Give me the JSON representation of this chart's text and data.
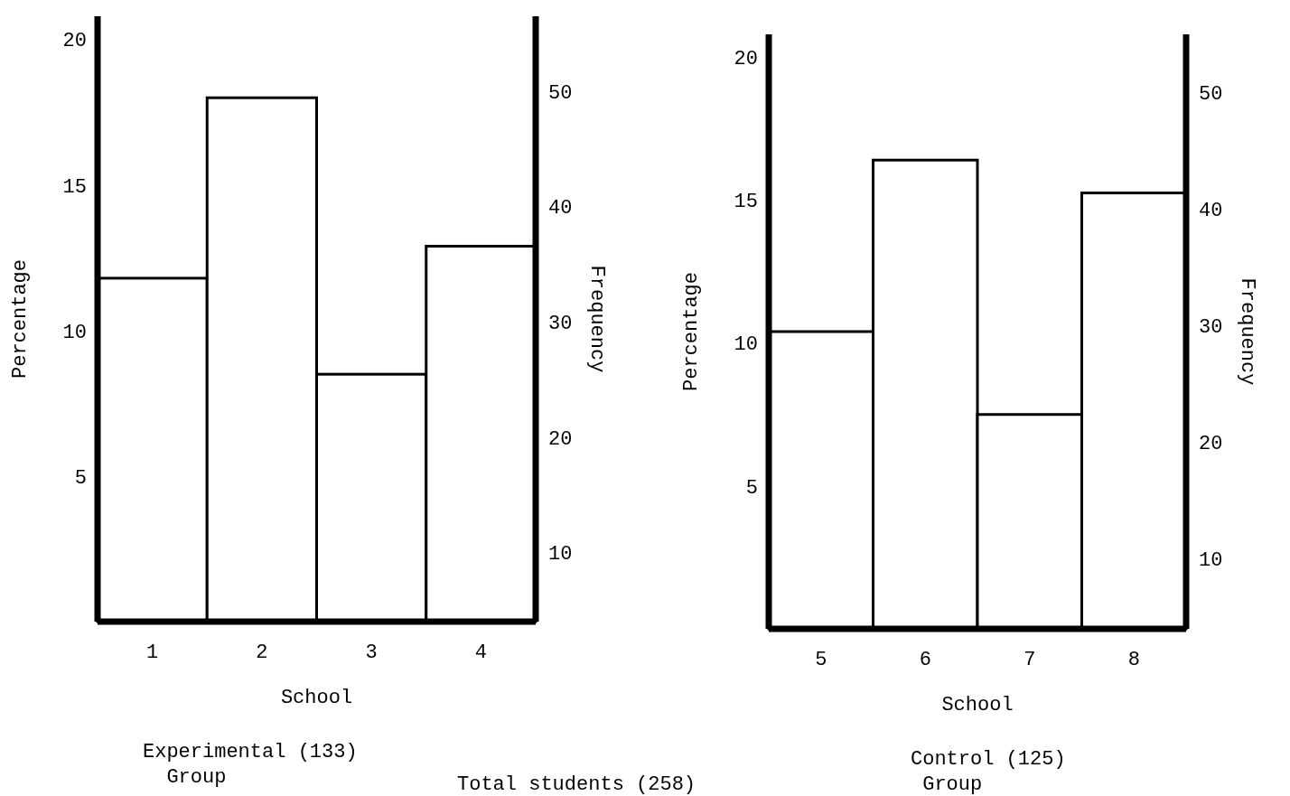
{
  "chart_data": [
    {
      "type": "bar",
      "categories": [
        "1",
        "2",
        "3",
        "4"
      ],
      "values": [
        11.8,
        18.0,
        8.5,
        12.9
      ],
      "color": "#000000",
      "xlabel": "School",
      "ylabel": "Percentage",
      "y2label": "Frequency",
      "ylim": [
        0,
        20.8
      ],
      "yticks": [
        5,
        10,
        15,
        20
      ],
      "y2lim": [
        4,
        56.5
      ],
      "y2ticks": [
        10,
        20,
        30,
        40,
        50
      ],
      "annotations": [
        "Experimental (133)\n  Group",
        "Total students (258)"
      ]
    },
    {
      "type": "bar",
      "categories": [
        "5",
        "6",
        "7",
        "8"
      ],
      "values": [
        10.4,
        16.4,
        7.5,
        15.25
      ],
      "color": "#000000",
      "xlabel": "School",
      "ylabel": "Percentage",
      "y2label": "Frequency",
      "ylim": [
        0,
        20.8
      ],
      "yticks": [
        5,
        10,
        15,
        20
      ],
      "y2lim": [
        4,
        55
      ],
      "y2ticks": [
        10,
        20,
        30,
        40,
        50
      ],
      "annotations": [
        "Control (125)\n Group"
      ]
    }
  ]
}
